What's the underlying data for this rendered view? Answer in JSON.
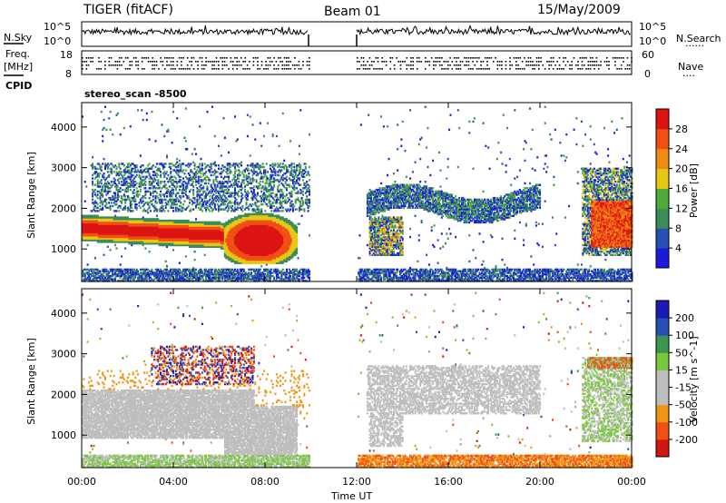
{
  "header": {
    "title": "TIGER (fitACF)",
    "beam": "Beam 01",
    "date": "15/May/2009",
    "stereo_label": "stereo_scan -8500"
  },
  "side_labels": {
    "nsky": "N.Sky",
    "freq_line1": "Freq.",
    "freq_line2": "[MHz]",
    "cpid": "CPID",
    "nsearch": "N.Search",
    "nsearch_dots": "......",
    "nave": "Nave",
    "nave_dots": "...."
  },
  "noise_axis": {
    "left_top": "10^5",
    "left_bottom": "10^0",
    "right_top": "10^5",
    "right_bottom": "10^0"
  },
  "freq_axis": {
    "left_ticks": [
      "18",
      "8"
    ],
    "right_ticks": [
      "60",
      "0"
    ]
  },
  "colors": {
    "power_scale": [
      "#1a1adc",
      "#2850b4",
      "#3c8c5a",
      "#50aa3c",
      "#e6c814",
      "#f08c14",
      "#f05014",
      "#dc1414"
    ],
    "velocity_scale": [
      "#d21414",
      "#f05014",
      "#f09614",
      "#bebebe",
      "#bebebe",
      "#78c83c",
      "#3c9650",
      "#2850b4",
      "#1a1ab4"
    ],
    "velocity_grey": "#bebebe"
  },
  "chart_data": [
    {
      "type": "heatmap",
      "name": "power-panel",
      "ylabel": "Slant Range [km]",
      "xlabel": "",
      "y_ticks": [
        "1000",
        "2000",
        "3000",
        "4000"
      ],
      "ylim": [
        200,
        4600
      ],
      "xlim": [
        0,
        24
      ],
      "colorbar_label": "Power [dB]",
      "colorbar_ticks": [
        "28",
        "24",
        "20",
        "16",
        "12",
        "8",
        "4"
      ],
      "colorbar_range": [
        0,
        32
      ]
    },
    {
      "type": "heatmap",
      "name": "velocity-panel",
      "ylabel": "Slant Range [km]",
      "xlabel": "Time UT",
      "y_ticks": [
        "1000",
        "2000",
        "3000",
        "4000"
      ],
      "ylim": [
        200,
        4600
      ],
      "xlim": [
        0,
        24
      ],
      "x_ticks": [
        "00:00",
        "04:00",
        "08:00",
        "12:00",
        "16:00",
        "20:00",
        "00:00"
      ],
      "colorbar_label": "Velocity [m s^-1]",
      "colorbar_ticks": [
        "200",
        "100",
        "50",
        "15",
        "-15",
        "-50",
        "-100",
        "-200"
      ],
      "colorbar_range": [
        -250,
        250
      ]
    }
  ]
}
